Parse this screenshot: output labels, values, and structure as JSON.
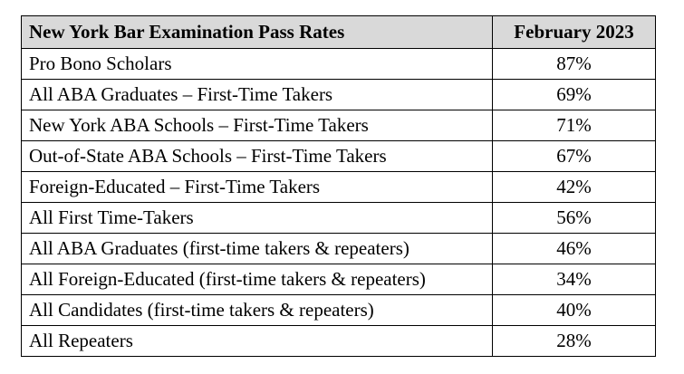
{
  "table": {
    "header": {
      "label": "New York Bar Examination Pass Rates",
      "value": "February 2023"
    },
    "rows": [
      {
        "label": "Pro Bono Scholars",
        "value": "87%"
      },
      {
        "label": "All ABA Graduates – First-Time Takers",
        "value": "69%"
      },
      {
        "label": "New York ABA Schools – First-Time Takers",
        "value": "71%"
      },
      {
        "label": "Out-of-State ABA Schools – First-Time Takers",
        "value": "67%"
      },
      {
        "label": "Foreign-Educated – First-Time Takers",
        "value": "42%"
      },
      {
        "label": "All First Time-Takers",
        "value": "56%"
      },
      {
        "label": "All ABA Graduates (first-time takers & repeaters)",
        "value": "46%"
      },
      {
        "label": "All Foreign-Educated (first-time takers & repeaters)",
        "value": "34%"
      },
      {
        "label": "All Candidates (first-time takers & repeaters)",
        "value": "40%"
      },
      {
        "label": "All Repeaters",
        "value": "28%"
      }
    ]
  }
}
